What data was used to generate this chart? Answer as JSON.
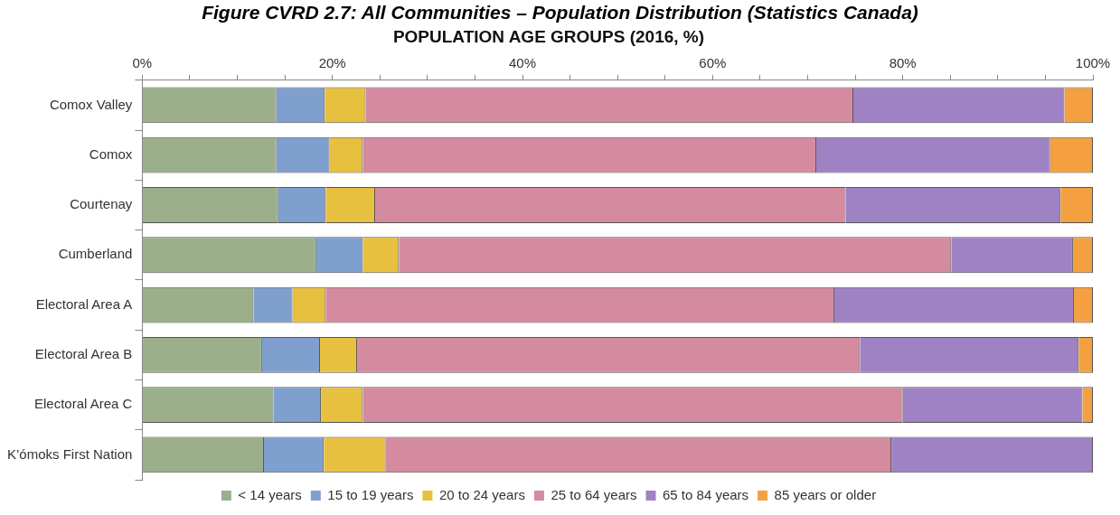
{
  "chart_data": {
    "type": "bar",
    "orientation": "horizontal",
    "stacked": true,
    "title": "Figure CVRD 2.7: All Communities – Population Distribution (Statistics Canada)",
    "subtitle": "POPULATION AGE GROUPS (2016, %)",
    "categories": [
      "Comox Valley",
      "Comox",
      "Courtenay",
      "Cumberland",
      "Electoral Area A",
      "Electoral Area B",
      "Electoral Area C",
      "K’ómoks First Nation"
    ],
    "series": [
      {
        "name": "< 14 years",
        "color": "#9bb08a",
        "values": [
          14.1,
          14.1,
          14.3,
          18.3,
          11.7,
          12.6,
          13.8,
          12.8
        ]
      },
      {
        "name": "15 to 19 years",
        "color": "#7f9fcf",
        "values": [
          5.1,
          5.6,
          5.0,
          4.9,
          4.1,
          6.1,
          5.0,
          6.3
        ]
      },
      {
        "name": "20 to 24 years",
        "color": "#e8c040",
        "values": [
          4.3,
          3.5,
          5.2,
          3.8,
          3.5,
          3.9,
          4.4,
          6.5
        ]
      },
      {
        "name": "25 to 64 years",
        "color": "#d48ba0",
        "values": [
          51.3,
          47.7,
          49.5,
          58.1,
          53.5,
          52.9,
          56.8,
          53.2
        ]
      },
      {
        "name": "65 to 84 years",
        "color": "#9f82c4",
        "values": [
          22.2,
          24.6,
          22.6,
          12.8,
          25.2,
          23.0,
          18.9,
          21.2
        ]
      },
      {
        "name": "85 years or older",
        "color": "#f4a040",
        "values": [
          3.0,
          4.5,
          3.4,
          2.1,
          2.0,
          1.5,
          1.1,
          0
        ]
      }
    ],
    "xlim": [
      0,
      100
    ],
    "xticks": [
      {
        "value": 0,
        "label": "0%"
      },
      {
        "value": 5,
        "label": null
      },
      {
        "value": 10,
        "label": null
      },
      {
        "value": 15,
        "label": null
      },
      {
        "value": 20,
        "label": "20%"
      },
      {
        "value": 25,
        "label": null
      },
      {
        "value": 30,
        "label": null
      },
      {
        "value": 35,
        "label": null
      },
      {
        "value": 40,
        "label": "40%"
      },
      {
        "value": 45,
        "label": null
      },
      {
        "value": 50,
        "label": null
      },
      {
        "value": 55,
        "label": null
      },
      {
        "value": 60,
        "label": "60%"
      },
      {
        "value": 65,
        "label": null
      },
      {
        "value": 70,
        "label": null
      },
      {
        "value": 75,
        "label": null
      },
      {
        "value": 80,
        "label": "80%"
      },
      {
        "value": 85,
        "label": null
      },
      {
        "value": 90,
        "label": null
      },
      {
        "value": 95,
        "label": null
      },
      {
        "value": 100,
        "label": "100%"
      }
    ],
    "legend": "bottom",
    "grid": false
  }
}
